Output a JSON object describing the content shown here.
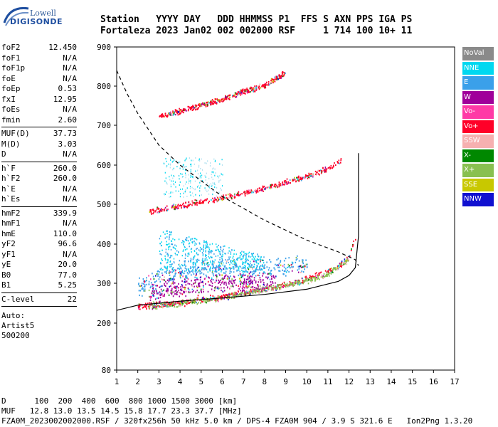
{
  "logo": {
    "line1": "Lowell",
    "line2": "DIGISONDE"
  },
  "header": {
    "labels": "Station   YYYY DAY   DDD HHMMSS P1  FFS S AXN PPS IGA PS",
    "values": "Fortaleza 2023 Jan02 002 002000 RSF     1 714 100 10+ 11"
  },
  "params": [
    [
      {
        "k": "foF2",
        "v": "12.450"
      },
      {
        "k": "foF1",
        "v": "N/A"
      },
      {
        "k": "foF1p",
        "v": "N/A"
      },
      {
        "k": "foE",
        "v": "N/A"
      },
      {
        "k": "foEp",
        "v": "0.53"
      },
      {
        "k": "fxI",
        "v": "12.95"
      },
      {
        "k": "foEs",
        "v": "N/A"
      },
      {
        "k": "fmin",
        "v": "2.60"
      }
    ],
    [
      {
        "k": "MUF(D)",
        "v": "37.73"
      },
      {
        "k": "M(D)",
        "v": "3.03"
      },
      {
        "k": "D",
        "v": "N/A"
      }
    ],
    [
      {
        "k": "h`F",
        "v": "260.0"
      },
      {
        "k": "h`F2",
        "v": "260.0"
      },
      {
        "k": "h`E",
        "v": "N/A"
      },
      {
        "k": "h`Es",
        "v": "N/A"
      }
    ],
    [
      {
        "k": "hmF2",
        "v": "339.9"
      },
      {
        "k": "hmF1",
        "v": "N/A"
      },
      {
        "k": "hmE",
        "v": "110.0"
      },
      {
        "k": "yF2",
        "v": "96.6"
      },
      {
        "k": "yF1",
        "v": "N/A"
      },
      {
        "k": "yE",
        "v": "20.0"
      },
      {
        "k": "B0",
        "v": "77.0"
      },
      {
        "k": "B1",
        "v": "5.25"
      }
    ],
    [
      {
        "k": "C-level",
        "v": "22"
      }
    ]
  ],
  "auto": {
    "line1": "Auto:",
    "line2": "Artist5",
    "line3": "500200"
  },
  "legend": [
    {
      "label": "NoVal",
      "color": "#8a8a8a"
    },
    {
      "label": "NNE",
      "color": "#00d8f0"
    },
    {
      "label": "E",
      "color": "#3aa0ea"
    },
    {
      "label": "W",
      "color": "#a0009a"
    },
    {
      "label": "Vo-",
      "color": "#ff3aa6"
    },
    {
      "label": "Vo+",
      "color": "#ff0028"
    },
    {
      "label": "SSW",
      "color": "#f6b0b0"
    },
    {
      "label": "X-",
      "color": "#008800"
    },
    {
      "label": "X+",
      "color": "#88c050"
    },
    {
      "label": "SSE",
      "color": "#c8c800"
    },
    {
      "label": "NNW",
      "color": "#1010d0"
    }
  ],
  "chart_data": {
    "type": "scatter",
    "xlim": [
      1,
      17
    ],
    "ylim": [
      80,
      900
    ],
    "x_ticks": [
      "1",
      "2",
      "3",
      "4",
      "5",
      "6",
      "7",
      "8",
      "9",
      "10",
      "11",
      "12",
      "13",
      "14",
      "15",
      "16",
      "17"
    ],
    "y_ticks": [
      "80",
      "200",
      "300",
      "400",
      "500",
      "600",
      "700",
      "800",
      "900"
    ],
    "traces": [
      {
        "name": "F2 O-trace",
        "color": "#ff0028",
        "x": [
          2.0,
          3.0,
          4.0,
          5.0,
          6.0,
          7.0,
          8.0,
          9.0,
          10.0,
          11.0,
          11.6,
          12.0,
          12.3
        ],
        "y": [
          240,
          245,
          250,
          258,
          265,
          275,
          285,
          295,
          310,
          330,
          345,
          370,
          420
        ]
      },
      {
        "name": "F2 X-trace",
        "color": "#88c050",
        "x": [
          2.5,
          4.0,
          6.0,
          8.0,
          10.0,
          11.0,
          12.0
        ],
        "y": [
          240,
          248,
          262,
          283,
          305,
          322,
          360
        ]
      },
      {
        "name": "2nd multiple",
        "color": "#ff0028",
        "x": [
          2.5,
          3.5,
          5.0,
          6.5,
          8.0,
          9.0,
          10.0,
          11.0,
          11.6
        ],
        "y": [
          480,
          490,
          505,
          520,
          540,
          555,
          570,
          590,
          610
        ]
      },
      {
        "name": "3rd multiple",
        "color": "#ff0028",
        "x": [
          3.0,
          4.0,
          5.0,
          6.0,
          7.0,
          8.0,
          9.0
        ],
        "y": [
          720,
          735,
          750,
          765,
          785,
          800,
          835
        ]
      },
      {
        "name": "E direction",
        "color": "#3aa0ea",
        "x": [
          2.0,
          3.0,
          4.0,
          5.0,
          6.0,
          7.0,
          8.0,
          9.0,
          10.0
        ],
        "y": [
          280,
          300,
          320,
          330,
          330,
          325,
          330,
          335,
          340
        ]
      },
      {
        "name": "W direction",
        "color": "#a0009a",
        "x": [
          2.5,
          3.5,
          4.5,
          5.5,
          6.5,
          7.5,
          8.5
        ],
        "y": [
          260,
          275,
          285,
          290,
          290,
          295,
          300
        ]
      }
    ],
    "profile_solid": {
      "x": [
        1.0,
        2.0,
        4.0,
        6.0,
        8.0,
        10.0,
        11.5,
        12.0,
        12.3,
        12.45,
        12.45
      ],
      "y": [
        232,
        245,
        255,
        263,
        272,
        285,
        305,
        320,
        340,
        420,
        630
      ]
    },
    "muf_dashed": {
      "x": [
        1.0,
        1.5,
        2.0,
        3.0,
        4.0,
        6.0,
        8.0,
        10.0,
        11.5,
        12.3,
        12.45
      ],
      "y": [
        840,
        780,
        730,
        650,
        600,
        520,
        460,
        410,
        380,
        360,
        345
      ]
    }
  },
  "footer": {
    "line1": "D      100  200  400  600  800 1000 1500 3000 [km]",
    "line2": "MUF   12.8 13.0 13.5 14.5 15.8 17.7 23.3 37.7 [MHz]",
    "line3": "FZA0M_2023002002000.RSF / 320fx256h 50 kHz 5.0 km / DPS-4 FZA0M 904 / 3.9 S 321.6 E   Ion2Png 1.3.20"
  }
}
